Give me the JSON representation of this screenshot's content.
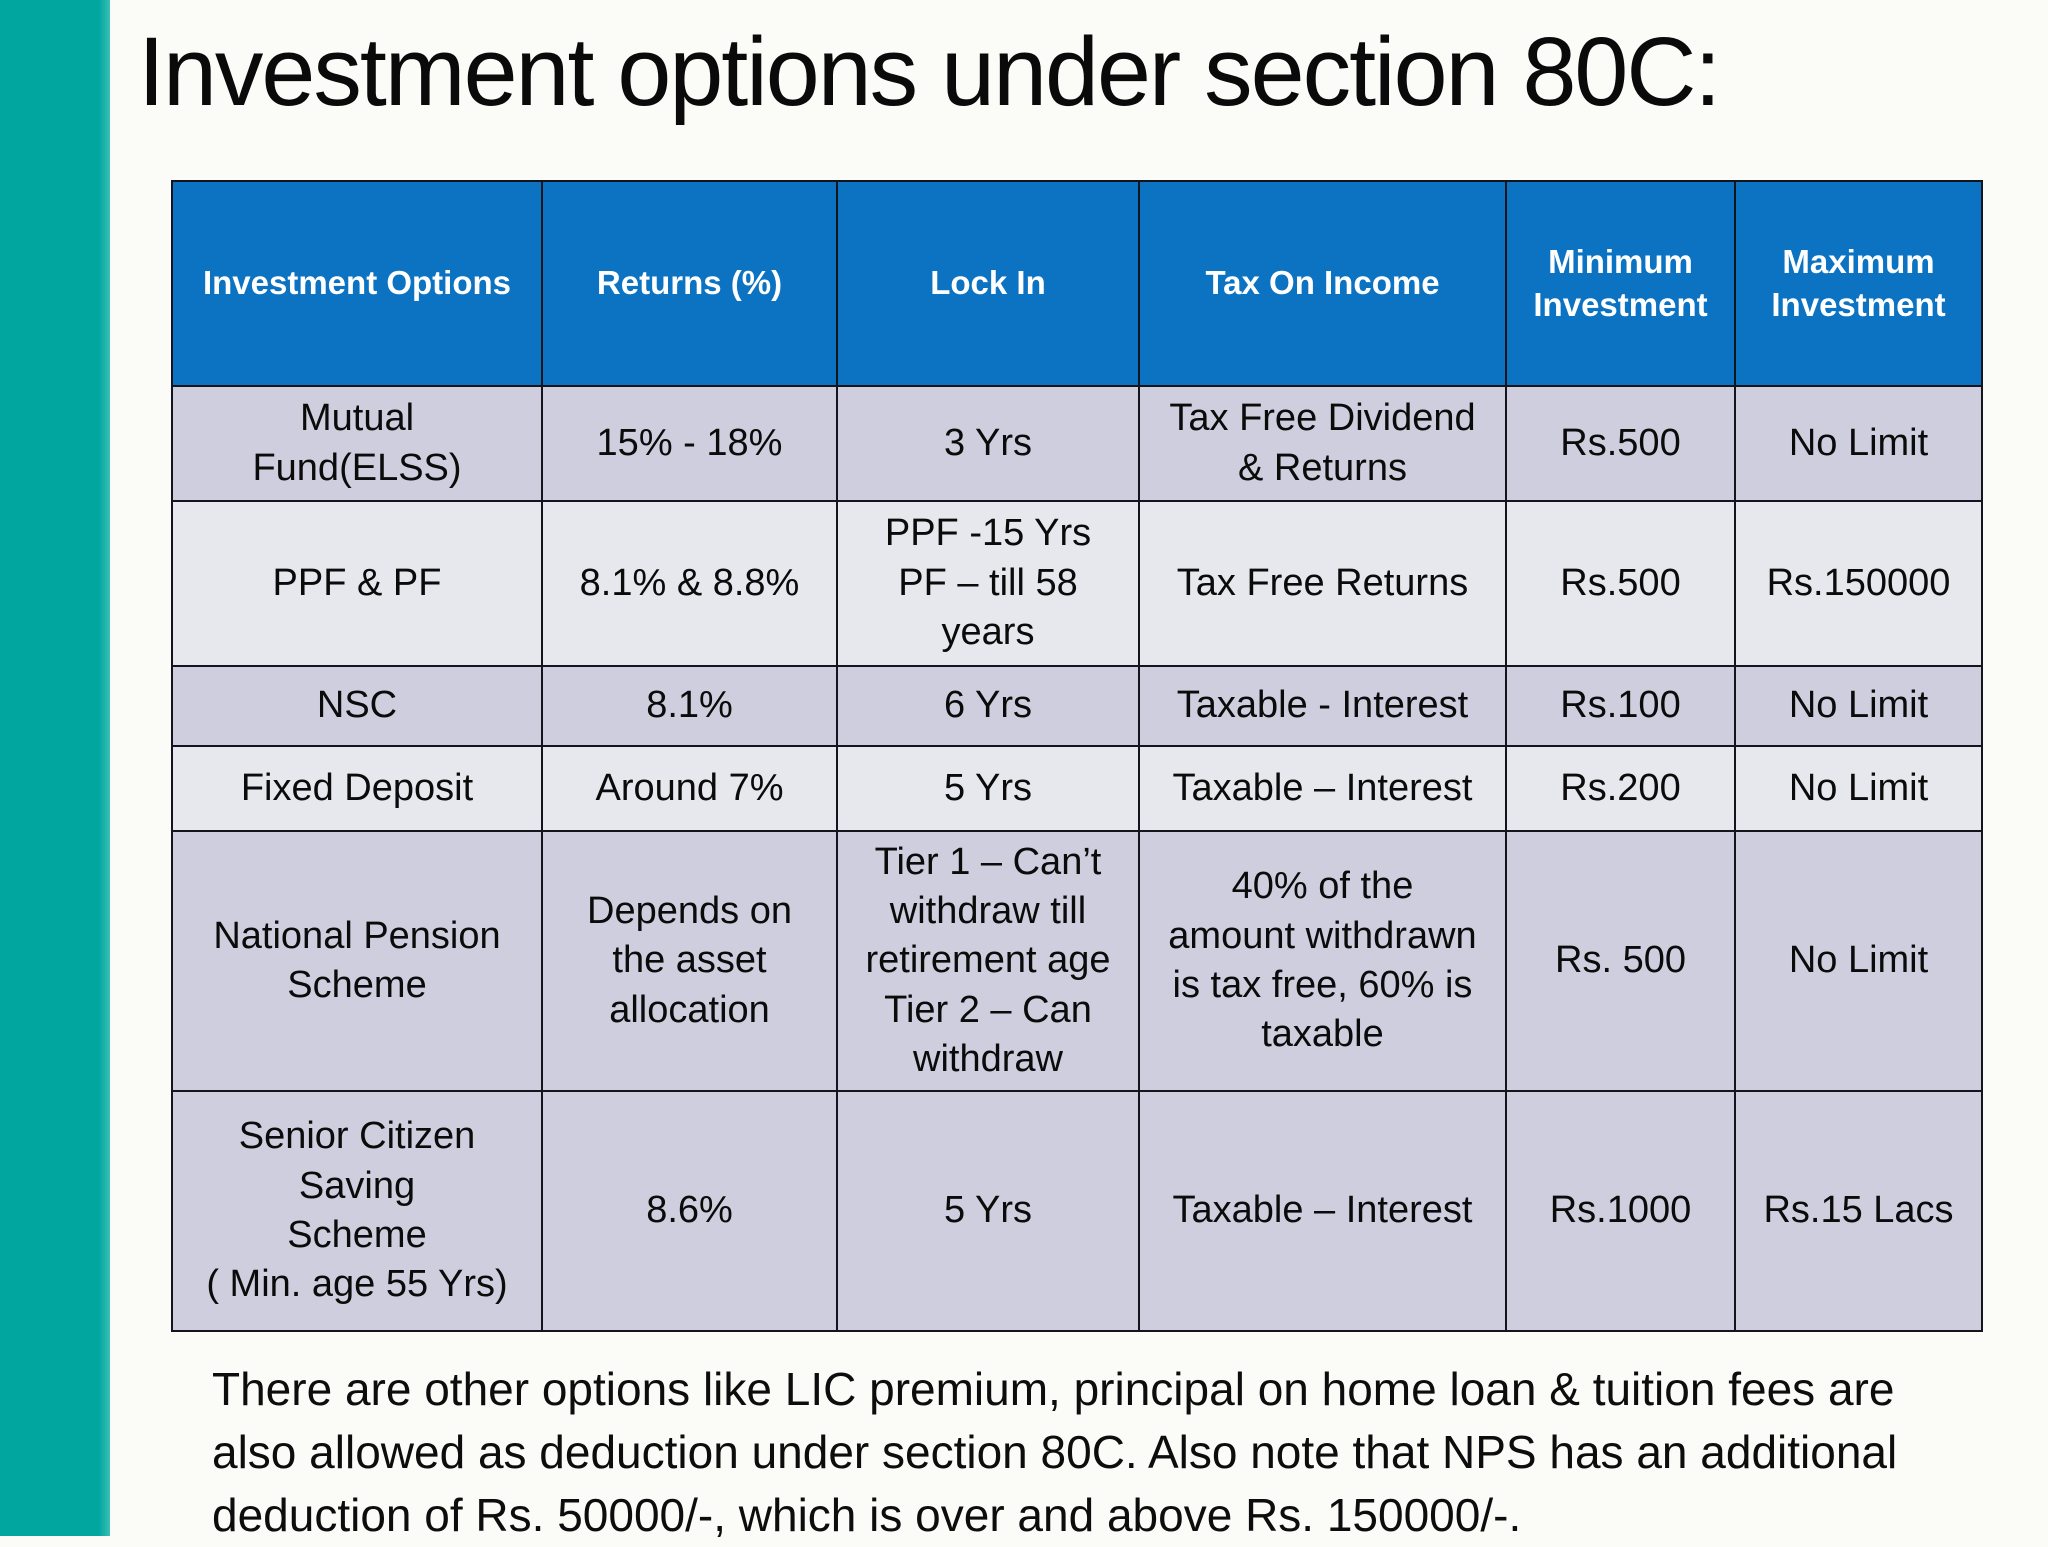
{
  "slide": {
    "title": "Investment options under section 80C:",
    "footer": "There are other options like LIC premium, principal on home loan & tuition fees are\nalso allowed as deduction under section 80C. Also note that NPS has an additional\ndeduction of Rs. 50000/-, which is over and above Rs. 150000/-."
  },
  "colors": {
    "slide_bg": "#FBFBF8",
    "accent_bar": "#01A79E",
    "header_bg": "#0B73C2",
    "header_text": "#FFFFFF",
    "row_dark": "#CECEDE",
    "row_light": "#E7E7EE",
    "border": "#14141E",
    "title_text": "#0A0A0A",
    "cell_text": "#0B0B0B",
    "footer_text": "#0D0D0D"
  },
  "table": {
    "columns": [
      "Investment Options",
      "Returns (%)",
      "Lock In",
      "Tax On Income",
      "Minimum Investment",
      "Maximum Investment"
    ],
    "rows": [
      {
        "shade": "dark",
        "cells": [
          "Mutual\nFund(ELSS)",
          "15% - 18%",
          "3 Yrs",
          "Tax Free Dividend\n& Returns",
          "Rs.500",
          "No Limit"
        ]
      },
      {
        "shade": "light",
        "cells": [
          "PPF & PF",
          "8.1% & 8.8%",
          "PPF -15 Yrs\nPF – till 58\nyears",
          "Tax Free Returns",
          "Rs.500",
          "Rs.150000"
        ]
      },
      {
        "shade": "dark",
        "cells": [
          "NSC",
          "8.1%",
          "6 Yrs",
          "Taxable - Interest",
          "Rs.100",
          "No Limit"
        ]
      },
      {
        "shade": "light",
        "cells": [
          "Fixed Deposit",
          "Around 7%",
          "5 Yrs",
          "Taxable – Interest",
          "Rs.200",
          "No Limit"
        ]
      },
      {
        "shade": "dark",
        "cells": [
          "National Pension\nScheme",
          "Depends on\nthe asset\nallocation",
          "Tier 1 – Can’t\nwithdraw till\nretirement age\nTier 2 – Can\nwithdraw",
          "40% of the\namount withdrawn\nis tax free, 60% is\ntaxable",
          "Rs. 500",
          "No Limit"
        ]
      },
      {
        "shade": "dark",
        "cells": [
          "Senior Citizen\nSaving\nScheme\n( Min. age 55 Yrs)",
          "8.6%",
          "5 Yrs",
          "Taxable – Interest",
          "Rs.1000",
          "Rs.15 Lacs"
        ]
      }
    ]
  }
}
